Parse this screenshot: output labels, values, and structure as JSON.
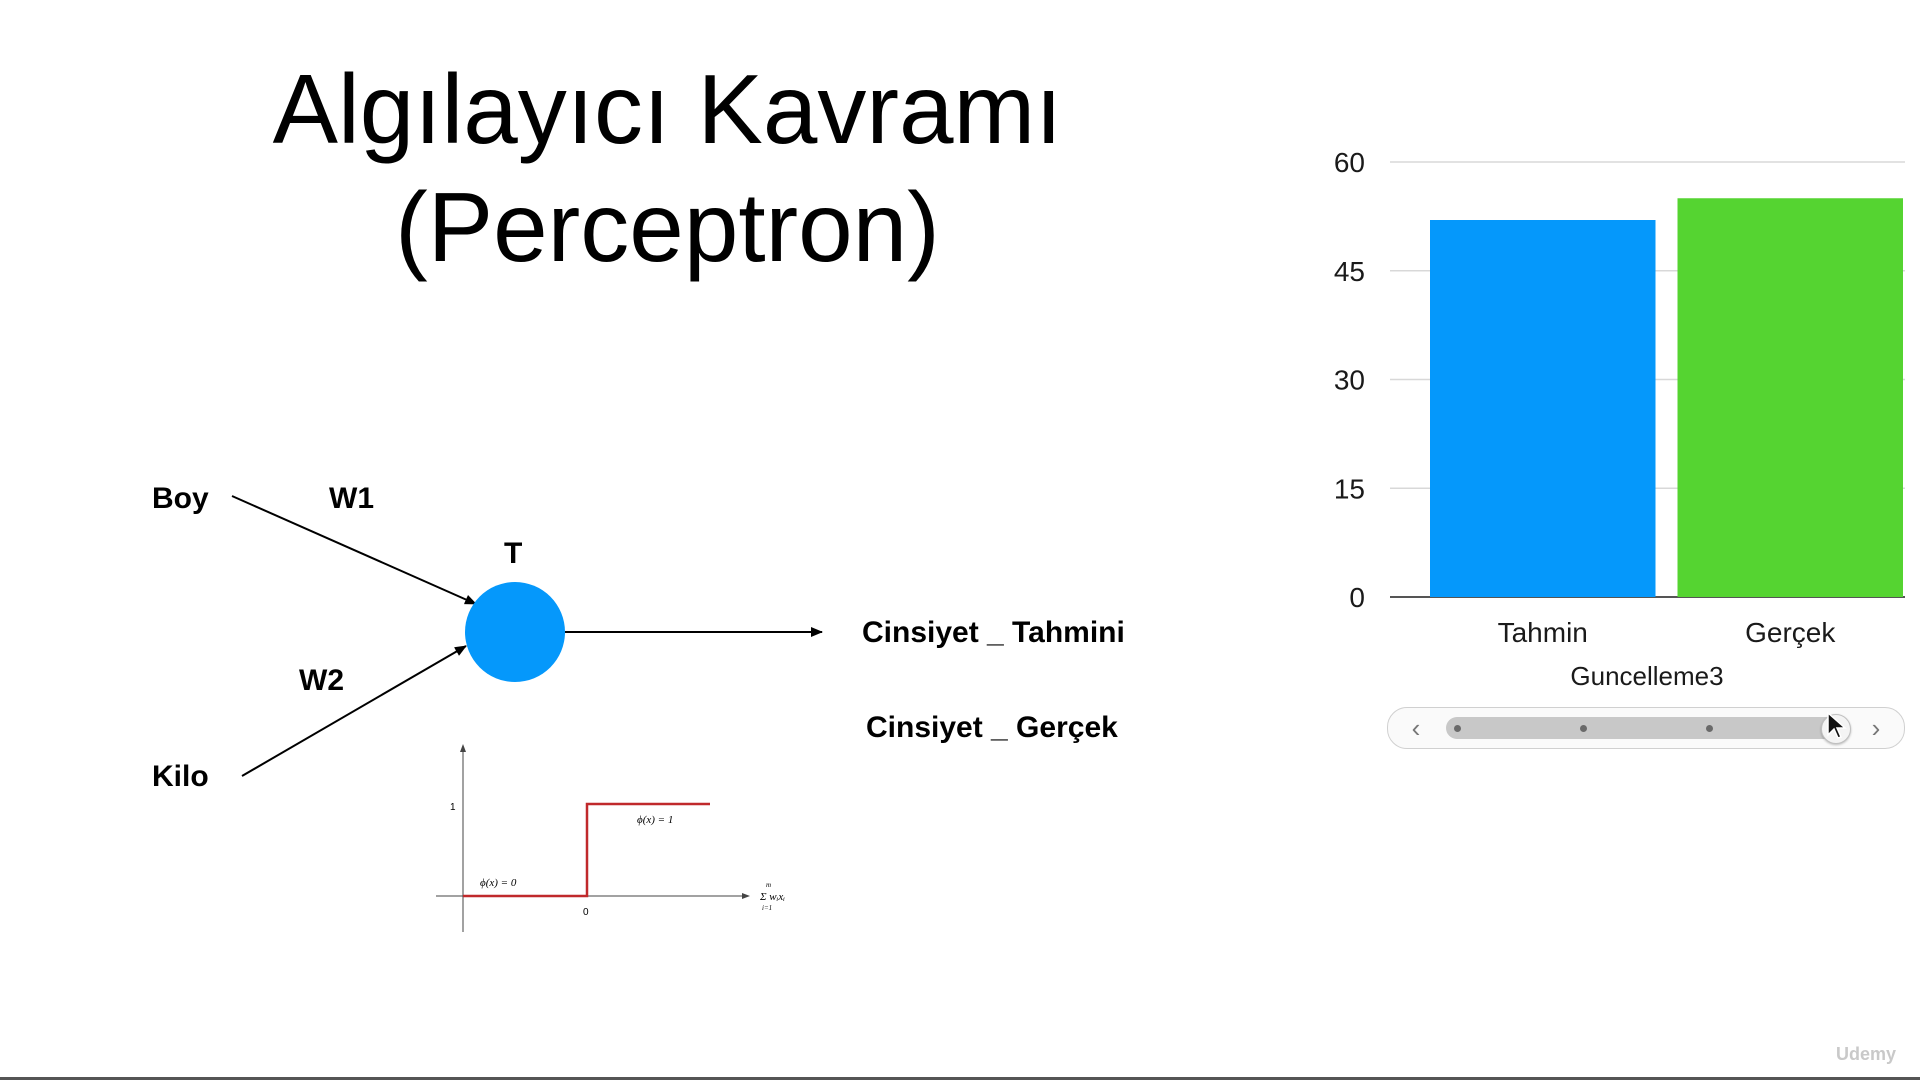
{
  "slide": {
    "title_line1": "Algılayıcı Kavramı",
    "title_line2": "(Perceptron)"
  },
  "diagram": {
    "inputs": [
      "Boy",
      "Kilo"
    ],
    "weights": [
      "W1",
      "W2"
    ],
    "neuron_label": "T",
    "neuron_color": "#0598fb",
    "outputs": [
      "Cinsiyet _ Tahmini",
      "Cinsiyet _ Gerçek"
    ],
    "step_plot": {
      "y_tick": "1",
      "x_tick": "0",
      "label_low": "ϕ(x) = 0",
      "label_high": "ϕ(x) = 1",
      "axis_sum": "Σ wᵢxᵢ",
      "sum_upper": "m",
      "sum_lower": "i=1",
      "line_color": "#c0292b"
    }
  },
  "chart_data": {
    "type": "bar",
    "categories": [
      "Tahmin",
      "Gerçek"
    ],
    "values": [
      52,
      55
    ],
    "colors": [
      "#0598fb",
      "#55d431"
    ],
    "xlabel": "Guncelleme3",
    "ylim": [
      0,
      60
    ],
    "yticks": [
      "0",
      "15",
      "30",
      "45",
      "60"
    ],
    "grid": true
  },
  "scrubber": {
    "prev_glyph": "‹",
    "next_glyph": "›",
    "steps": 4,
    "current_step": 4
  },
  "watermark": "Udemy"
}
